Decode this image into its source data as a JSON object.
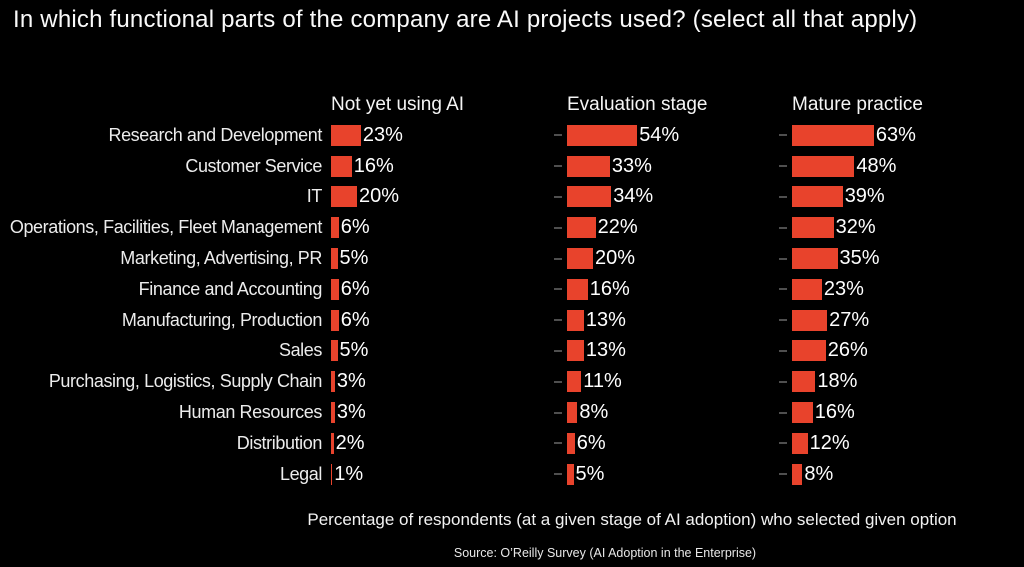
{
  "title": "In which functional parts of the company are AI projects used?  (select all that apply)",
  "caption": "Percentage of respondents (at a given stage of AI adoption) who selected given option",
  "source": "Source:  O’Reilly Survey (AI Adoption in the Enterprise)",
  "colors": {
    "background": "#000000",
    "bar": "#e8432c",
    "tick": "#4f4f4f",
    "text": "#f2f2f2"
  },
  "chart_data": {
    "type": "bar",
    "orientation": "horizontal",
    "unit": "percent",
    "value_suffix": "%",
    "shared_scale": true,
    "axis_ticks_visible": false,
    "grid": false,
    "legend": "none",
    "title": "In which functional parts of the company are AI projects used?  (select all that apply)",
    "xlabel": "Percentage of respondents (at a given stage of AI adoption) who selected given option",
    "categories": [
      "Research and Development",
      "Customer Service",
      "IT",
      "Operations, Facilities, Fleet Management",
      "Marketing, Advertising, PR",
      "Finance and Accounting",
      "Manufacturing, Production",
      "Sales",
      "Purchasing, Logistics, Supply Chain",
      "Human Resources",
      "Distribution",
      "Legal"
    ],
    "series": [
      {
        "name": "Not yet using AI",
        "values": [
          23,
          16,
          20,
          6,
          5,
          6,
          6,
          5,
          3,
          3,
          2,
          1
        ]
      },
      {
        "name": "Evaluation stage",
        "values": [
          54,
          33,
          34,
          22,
          20,
          16,
          13,
          13,
          11,
          8,
          6,
          5
        ]
      },
      {
        "name": "Mature practice",
        "values": [
          63,
          48,
          39,
          32,
          35,
          23,
          27,
          26,
          18,
          16,
          12,
          8
        ]
      }
    ]
  }
}
